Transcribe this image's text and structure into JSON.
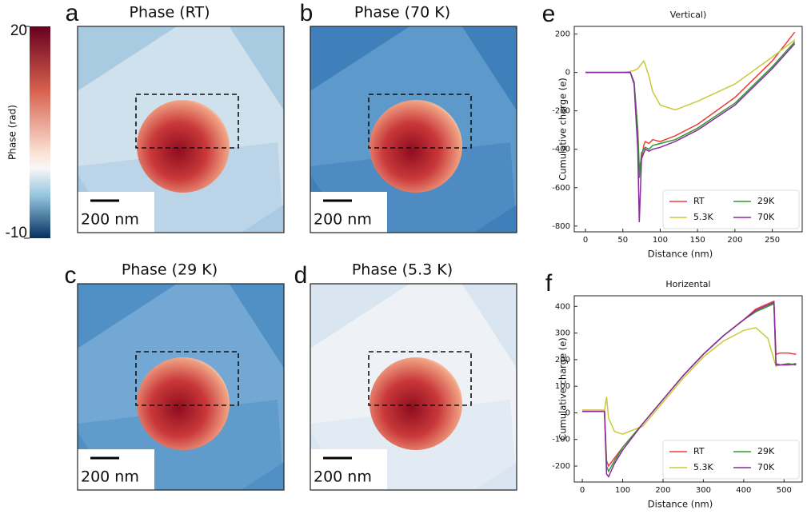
{
  "colorbar": {
    "label": "Phase (rad)",
    "lim": [
      -10,
      20
    ],
    "ticks": [
      -10,
      20
    ]
  },
  "panels": [
    {
      "letter": "a",
      "title": "Phase (RT)",
      "scale_bar": "200 nm",
      "colors": {
        "background": "#a9cbe2",
        "tile": "#d0e1ee"
      }
    },
    {
      "letter": "b",
      "title": "Phase (70 K)",
      "scale_bar": "200 nm",
      "colors": {
        "background": "#3f80bb",
        "tile": "#5d9acb"
      }
    },
    {
      "letter": "c",
      "title": "Phase (29 K)",
      "scale_bar": "200 nm",
      "colors": {
        "background": "#5090c5",
        "tile": "#72a8d3"
      }
    },
    {
      "letter": "d",
      "title": "Phase (5.3 K)",
      "scale_bar": "200 nm",
      "colors": {
        "background": "#d9e6f1",
        "tile": "#eef2f6"
      }
    }
  ],
  "chart_data": [
    {
      "type": "line",
      "letter": "e",
      "title": "Vertical)",
      "x_label": "Distance (nm)",
      "y_label": "Cumulative charge (e)",
      "x": [
        0,
        10,
        20,
        30,
        40,
        50,
        60,
        65,
        70,
        72,
        75,
        78,
        80,
        85,
        90,
        100,
        120,
        150,
        200,
        250,
        280
      ],
      "series": [
        {
          "name": "RT",
          "color": "#ee3b3b",
          "values": [
            0,
            0,
            0,
            0,
            0,
            0,
            0,
            -50,
            -300,
            -500,
            -450,
            -380,
            -360,
            -370,
            -350,
            -360,
            -330,
            -270,
            -130,
            60,
            210
          ]
        },
        {
          "name": "5.3K",
          "color": "#c9c83a",
          "values": [
            0,
            0,
            0,
            0,
            0,
            0,
            5,
            10,
            20,
            30,
            45,
            60,
            40,
            -20,
            -100,
            -170,
            -195,
            -150,
            -60,
            80,
            170
          ]
        },
        {
          "name": "29K",
          "color": "#2e9a2e",
          "values": [
            0,
            0,
            0,
            0,
            0,
            0,
            0,
            -50,
            -300,
            -550,
            -420,
            -400,
            -390,
            -400,
            -380,
            -370,
            -350,
            -290,
            -160,
            30,
            160
          ]
        },
        {
          "name": "70K",
          "color": "#8a2a9e",
          "values": [
            0,
            0,
            0,
            0,
            0,
            0,
            0,
            -60,
            -400,
            -780,
            -450,
            -420,
            -400,
            -410,
            -400,
            -390,
            -360,
            -300,
            -170,
            20,
            150
          ]
        }
      ],
      "xlim": [
        -15,
        290
      ],
      "ylim": [
        -830,
        240
      ],
      "xticks": [
        0,
        50,
        100,
        150,
        200,
        250
      ],
      "yticks": [
        -800,
        -600,
        -400,
        -200,
        0,
        200
      ],
      "legend": "lower right"
    },
    {
      "type": "line",
      "letter": "f",
      "title": "Horizental",
      "x_label": "Distance (nm)",
      "y_label": "Cumulative charge (e)",
      "x": [
        0,
        20,
        40,
        55,
        60,
        65,
        80,
        100,
        150,
        200,
        250,
        300,
        350,
        400,
        430,
        460,
        475,
        480,
        490,
        510,
        530
      ],
      "series": [
        {
          "name": "RT",
          "color": "#ee3b3b",
          "values": [
            10,
            10,
            10,
            10,
            -180,
            -200,
            -170,
            -130,
            -40,
            50,
            140,
            220,
            290,
            350,
            390,
            410,
            420,
            220,
            225,
            225,
            220
          ]
        },
        {
          "name": "5.3K",
          "color": "#c9c83a",
          "values": [
            10,
            10,
            10,
            10,
            60,
            -20,
            -70,
            -80,
            -50,
            40,
            130,
            210,
            270,
            310,
            320,
            280,
            200,
            175,
            180,
            180,
            180
          ]
        },
        {
          "name": "29K",
          "color": "#2e9a2e",
          "values": [
            5,
            5,
            5,
            5,
            -200,
            -220,
            -180,
            -130,
            -40,
            50,
            140,
            220,
            290,
            350,
            380,
            400,
            410,
            185,
            180,
            185,
            180
          ]
        },
        {
          "name": "70K",
          "color": "#8a2a9e",
          "values": [
            5,
            5,
            5,
            5,
            -230,
            -240,
            -190,
            -140,
            -40,
            50,
            140,
            220,
            290,
            350,
            385,
            405,
            415,
            180,
            180,
            180,
            185
          ]
        }
      ],
      "xlim": [
        -20,
        545
      ],
      "ylim": [
        -260,
        440
      ],
      "xticks": [
        0,
        100,
        200,
        300,
        400,
        500
      ],
      "yticks": [
        -200,
        -100,
        0,
        100,
        200,
        300,
        400
      ],
      "legend": "lower right"
    }
  ]
}
